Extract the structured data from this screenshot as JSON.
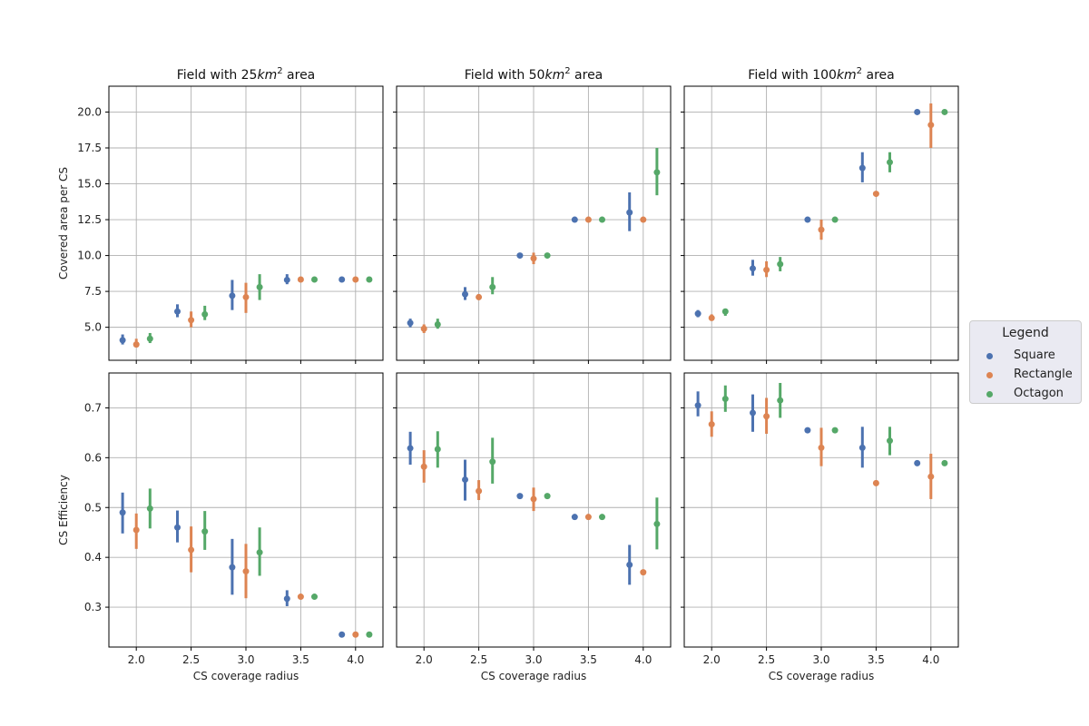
{
  "legend": {
    "title": "Legend",
    "items": [
      {
        "label": "Square",
        "color": "#4c72b0"
      },
      {
        "label": "Rectangle",
        "color": "#dd8452"
      },
      {
        "label": "Octagon",
        "color": "#55a868"
      }
    ]
  },
  "chart_data": {
    "type": "scatter",
    "categories": [
      "2.0",
      "2.5",
      "3.0",
      "3.5",
      "4.0"
    ],
    "xlabel": "CS coverage radius",
    "grid": true,
    "legend_position": "right",
    "rows": [
      {
        "ylabel": "Covered area per CS",
        "ylim": [
          2.7,
          21.8
        ],
        "ticks": [
          5.0,
          7.5,
          10.0,
          12.5,
          15.0,
          17.5,
          20.0
        ],
        "tick_labels": [
          "5.0",
          "7.5",
          "10.0",
          "12.5",
          "15.0",
          "17.5",
          "20.0"
        ]
      },
      {
        "ylabel": "CS Efficiency",
        "ylim": [
          0.22,
          0.77
        ],
        "ticks": [
          0.3,
          0.4,
          0.5,
          0.6,
          0.7
        ],
        "tick_labels": [
          "0.3",
          "0.4",
          "0.5",
          "0.6",
          "0.7"
        ]
      }
    ],
    "panels": [
      {
        "title_prefix": "Field with 25",
        "title_unit": "km",
        "title_exp": "2",
        "title_suffix": " area",
        "row": 0,
        "col": 0,
        "series": [
          {
            "name": "Square",
            "mean": [
              4.1,
              6.1,
              7.2,
              8.3,
              8.33
            ],
            "low": [
              3.8,
              5.7,
              6.2,
              8.0,
              8.33
            ],
            "high": [
              4.5,
              6.6,
              8.3,
              8.7,
              8.33
            ]
          },
          {
            "name": "Rectangle",
            "mean": [
              3.8,
              5.5,
              7.1,
              8.33,
              8.33
            ],
            "low": [
              3.6,
              5.0,
              6.0,
              8.33,
              8.33
            ],
            "high": [
              4.2,
              6.1,
              8.1,
              8.33,
              8.33
            ]
          },
          {
            "name": "Octagon",
            "mean": [
              4.2,
              5.9,
              7.8,
              8.33,
              8.33
            ],
            "low": [
              3.9,
              5.5,
              6.9,
              8.33,
              8.33
            ],
            "high": [
              4.6,
              6.5,
              8.7,
              8.33,
              8.33
            ]
          }
        ]
      },
      {
        "title_prefix": "Field with 50",
        "title_unit": "km",
        "title_exp": "2",
        "title_suffix": " area",
        "row": 0,
        "col": 1,
        "series": [
          {
            "name": "Square",
            "mean": [
              5.3,
              7.3,
              10.0,
              12.5,
              13.0
            ],
            "low": [
              5.0,
              6.9,
              10.0,
              12.5,
              11.7
            ],
            "high": [
              5.6,
              7.8,
              10.0,
              12.5,
              14.4
            ]
          },
          {
            "name": "Rectangle",
            "mean": [
              4.9,
              7.1,
              9.8,
              12.5,
              12.5
            ],
            "low": [
              4.6,
              6.9,
              9.4,
              12.5,
              12.5
            ],
            "high": [
              5.2,
              7.3,
              10.2,
              12.5,
              12.5
            ]
          },
          {
            "name": "Octagon",
            "mean": [
              5.2,
              7.8,
              10.0,
              12.5,
              15.8
            ],
            "low": [
              4.9,
              7.3,
              10.0,
              12.5,
              14.2
            ],
            "high": [
              5.6,
              8.5,
              10.0,
              12.5,
              17.5
            ]
          }
        ]
      },
      {
        "title_prefix": "Field with 100",
        "title_unit": "km",
        "title_exp": "2",
        "title_suffix": " area",
        "row": 0,
        "col": 2,
        "series": [
          {
            "name": "Square",
            "mean": [
              5.95,
              9.1,
              12.5,
              16.1,
              20.0
            ],
            "low": [
              5.7,
              8.6,
              12.5,
              15.1,
              20.0
            ],
            "high": [
              6.2,
              9.7,
              12.5,
              17.2,
              20.0
            ]
          },
          {
            "name": "Rectangle",
            "mean": [
              5.65,
              9.0,
              11.8,
              14.3,
              19.1
            ],
            "low": [
              5.5,
              8.5,
              11.1,
              14.3,
              17.5
            ],
            "high": [
              5.9,
              9.6,
              12.5,
              14.3,
              20.6
            ]
          },
          {
            "name": "Octagon",
            "mean": [
              6.1,
              9.4,
              12.5,
              16.5,
              20.0
            ],
            "low": [
              5.8,
              8.9,
              12.5,
              15.8,
              20.0
            ],
            "high": [
              6.3,
              9.9,
              12.5,
              17.2,
              20.0
            ]
          }
        ]
      },
      {
        "row": 1,
        "col": 0,
        "series": [
          {
            "name": "Square",
            "mean": [
              0.49,
              0.46,
              0.38,
              0.317,
              0.245
            ],
            "low": [
              0.448,
              0.43,
              0.325,
              0.302,
              0.245
            ],
            "high": [
              0.53,
              0.494,
              0.437,
              0.334,
              0.245
            ]
          },
          {
            "name": "Rectangle",
            "mean": [
              0.455,
              0.415,
              0.372,
              0.321,
              0.245
            ],
            "low": [
              0.417,
              0.37,
              0.318,
              0.321,
              0.245
            ],
            "high": [
              0.488,
              0.462,
              0.427,
              0.321,
              0.245
            ]
          },
          {
            "name": "Octagon",
            "mean": [
              0.498,
              0.452,
              0.41,
              0.321,
              0.245
            ],
            "low": [
              0.458,
              0.415,
              0.363,
              0.321,
              0.245
            ],
            "high": [
              0.538,
              0.493,
              0.46,
              0.321,
              0.245
            ]
          }
        ]
      },
      {
        "row": 1,
        "col": 1,
        "series": [
          {
            "name": "Square",
            "mean": [
              0.619,
              0.556,
              0.523,
              0.481,
              0.385
            ],
            "low": [
              0.586,
              0.514,
              0.523,
              0.481,
              0.345
            ],
            "high": [
              0.652,
              0.596,
              0.523,
              0.481,
              0.425
            ]
          },
          {
            "name": "Rectangle",
            "mean": [
              0.582,
              0.533,
              0.517,
              0.481,
              0.37
            ],
            "low": [
              0.55,
              0.515,
              0.493,
              0.481,
              0.37
            ],
            "high": [
              0.615,
              0.555,
              0.54,
              0.481,
              0.37
            ]
          },
          {
            "name": "Octagon",
            "mean": [
              0.617,
              0.592,
              0.523,
              0.481,
              0.467
            ],
            "low": [
              0.58,
              0.548,
              0.523,
              0.481,
              0.416
            ],
            "high": [
              0.653,
              0.64,
              0.523,
              0.481,
              0.52
            ]
          }
        ]
      },
      {
        "row": 1,
        "col": 2,
        "series": [
          {
            "name": "Square",
            "mean": [
              0.705,
              0.69,
              0.655,
              0.62,
              0.589
            ],
            "low": [
              0.683,
              0.652,
              0.655,
              0.58,
              0.589
            ],
            "high": [
              0.733,
              0.727,
              0.655,
              0.662,
              0.589
            ]
          },
          {
            "name": "Rectangle",
            "mean": [
              0.667,
              0.683,
              0.62,
              0.549,
              0.562
            ],
            "low": [
              0.642,
              0.648,
              0.583,
              0.549,
              0.517
            ],
            "high": [
              0.693,
              0.72,
              0.66,
              0.549,
              0.608
            ]
          },
          {
            "name": "Octagon",
            "mean": [
              0.718,
              0.715,
              0.655,
              0.634,
              0.589
            ],
            "low": [
              0.692,
              0.68,
              0.655,
              0.605,
              0.589
            ],
            "high": [
              0.745,
              0.75,
              0.655,
              0.662,
              0.589
            ]
          }
        ]
      }
    ]
  }
}
